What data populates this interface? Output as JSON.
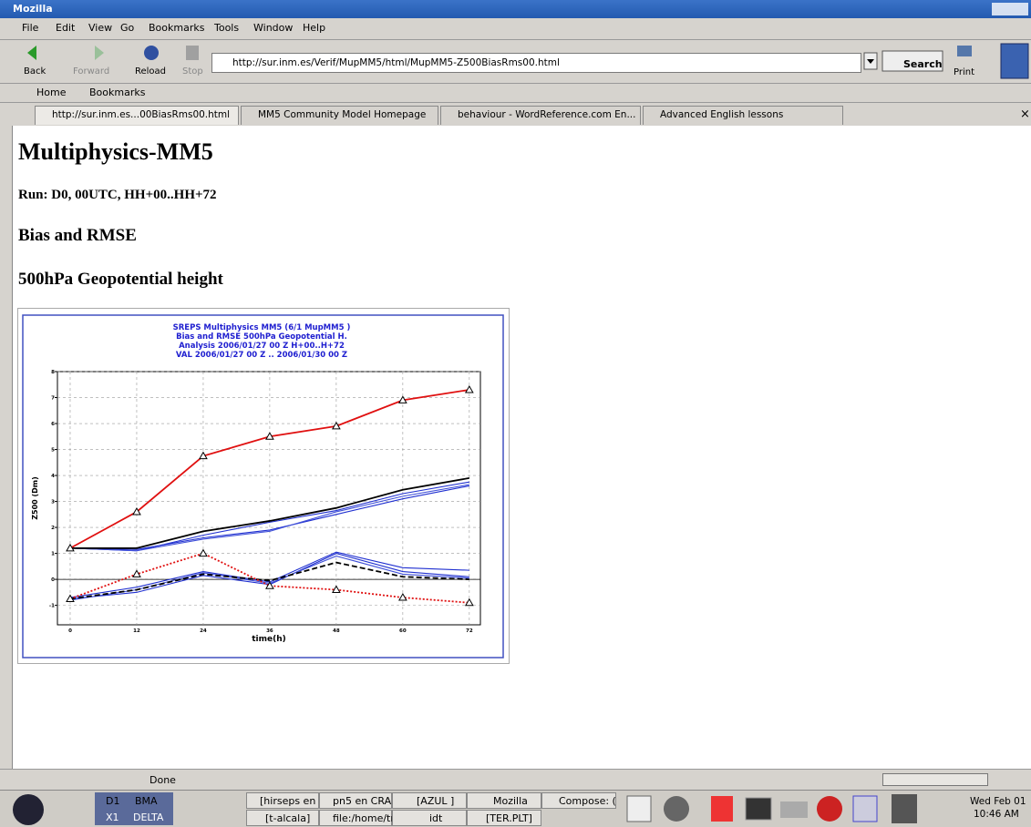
{
  "window": {
    "title": "Mozilla"
  },
  "menu": [
    "File",
    "Edit",
    "View",
    "Go",
    "Bookmarks",
    "Tools",
    "Window",
    "Help"
  ],
  "toolbar": {
    "back": "Back",
    "forward": "Forward",
    "reload": "Reload",
    "stop": "Stop",
    "url": "http://sur.inm.es/Verif/MupMM5/html/MupMM5-Z500BiasRms00.html",
    "search": "Search",
    "print": "Print"
  },
  "bookmarks_bar": [
    "Home",
    "Bookmarks"
  ],
  "tabs": [
    "http://sur.inm.es...00BiasRms00.html",
    "MM5 Community Model Homepage",
    "behaviour - WordReference.com En...",
    "Advanced English lessons"
  ],
  "content": {
    "heading": "Multiphysics-MM5",
    "run": "Run: D0, 00UTC, HH+00..HH+72",
    "section": "Bias and RMSE",
    "subsection": "500hPa Geopotential height"
  },
  "chart_data": {
    "type": "line",
    "title": [
      "SREPS Multiphysics MM5   (6/1 MupMM5 )",
      "Bias and RMSE  500hPa Geopotential H.",
      "Analysis 2006/01/27 00 Z  H+00..H+72",
      "VAL 2006/01/27 00 Z .. 2006/01/30 00 Z"
    ],
    "xlabel": "time(h)",
    "ylabel": "Z500 (Dm)",
    "x": [
      0,
      12,
      24,
      36,
      48,
      60,
      72
    ],
    "xlim": [
      -2.3,
      74
    ],
    "xticks": [
      0,
      12,
      24,
      36,
      48,
      60,
      72
    ],
    "ylim": [
      -1.75,
      8
    ],
    "yticks": [
      -1,
      0,
      1,
      2,
      3,
      4,
      5,
      6,
      7,
      8
    ],
    "grid": true,
    "series": [
      {
        "color": "#1f2fd0",
        "values": [
          1.2,
          1.1,
          1.7,
          2.2,
          2.65,
          3.3,
          3.75
        ]
      },
      {
        "color": "#1f2fd0",
        "values": [
          1.2,
          1.15,
          1.6,
          1.9,
          2.5,
          3.1,
          3.6
        ]
      },
      {
        "color": "#4050d8",
        "values": [
          1.2,
          1.1,
          1.55,
          1.85,
          2.6,
          3.2,
          3.65
        ]
      },
      {
        "color": "#000000",
        "values": [
          1.2,
          1.2,
          1.85,
          2.25,
          2.75,
          3.45,
          3.9
        ]
      },
      {
        "color": "#e01010",
        "values": [
          1.2,
          2.6,
          4.75,
          5.5,
          5.9,
          6.9,
          7.3
        ],
        "marker": "triangle"
      },
      {
        "color": "#1f2fd0",
        "values": [
          -0.7,
          -0.3,
          0.3,
          -0.1,
          1.05,
          0.45,
          0.35
        ]
      },
      {
        "color": "#1f2fd0",
        "values": [
          -0.75,
          -0.5,
          0.15,
          -0.2,
          1.0,
          0.3,
          0.1
        ]
      },
      {
        "color": "#4050d8",
        "values": [
          -0.8,
          -0.4,
          0.25,
          -0.15,
          0.9,
          0.2,
          0.05
        ]
      },
      {
        "color": "#000000",
        "values": [
          -0.75,
          -0.4,
          0.2,
          -0.05,
          0.65,
          0.1,
          0.0
        ],
        "dash": "dashed"
      },
      {
        "color": "#e01010",
        "values": [
          -0.75,
          0.2,
          1.0,
          -0.25,
          -0.4,
          -0.7,
          -0.9
        ],
        "dash": "dotted",
        "marker": "triangle"
      }
    ]
  },
  "status": "Done",
  "taskbar": {
    "desk1": "D1",
    "desk2": "BMA",
    "desk3": "X1",
    "desk4": "DELTA",
    "tasks": [
      "[hirseps en (",
      "[t-alcala]",
      "pn5 en CRA",
      "file:/home/tr",
      "[AZUL ]",
      "idt",
      "Mozilla",
      "[TER.PLT]",
      "Compose: (r"
    ],
    "date": "Wed Feb 01",
    "time": "10:46 AM"
  }
}
